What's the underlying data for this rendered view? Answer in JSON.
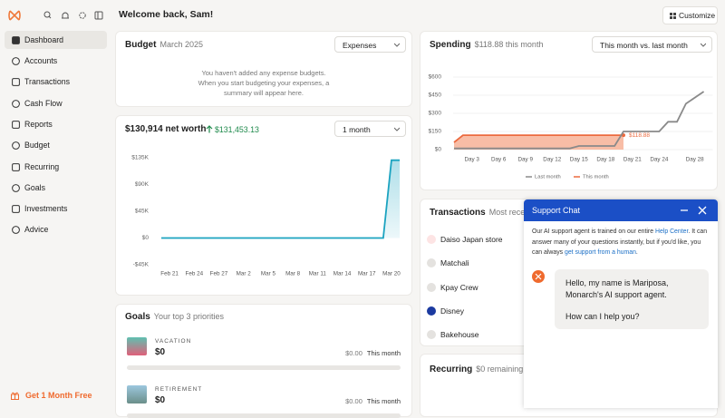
{
  "sidebar": {
    "nav": [
      "Dashboard",
      "Accounts",
      "Transactions",
      "Cash Flow",
      "Reports",
      "Budget",
      "Recurring",
      "Goals",
      "Investments",
      "Advice"
    ],
    "promo": "Get 1 Month Free"
  },
  "header": {
    "title": "Welcome back, Sam!",
    "customize": "Customize"
  },
  "budget": {
    "title": "Budget",
    "period": "March 2025",
    "dropdown": "Expenses",
    "empty_lines": [
      "You haven't added any expense budgets.",
      "When you start budgeting your expenses, a",
      "summary will appear here."
    ]
  },
  "net_worth": {
    "title": "$130,914 net worth",
    "change": "$131,453.13",
    "dropdown": "1 month",
    "chart": {
      "type": "line",
      "color": "#1ba3c0",
      "grid": false,
      "categories": [
        null,
        "Feb 21",
        null,
        null,
        "Feb 24",
        null,
        null,
        "Feb 27",
        null,
        null,
        "Mar 2",
        null,
        null,
        "Mar 5",
        null,
        null,
        "Mar 8",
        null,
        null,
        "Mar 11",
        null,
        null,
        "Mar 14",
        null,
        null,
        "Mar 17",
        null,
        null,
        "Mar 20",
        null
      ],
      "values": [
        0,
        0,
        0,
        0,
        0,
        0,
        0,
        0,
        0,
        0,
        0,
        0,
        0,
        0,
        0,
        0,
        0,
        0,
        0,
        0,
        0,
        0,
        0,
        0,
        0,
        0,
        0,
        0,
        130914,
        130914
      ],
      "ylim": [
        -45000,
        135000
      ],
      "yticks": [
        {
          "value": -45000,
          "label": "-$45K"
        },
        {
          "value": 0,
          "label": "$0"
        },
        {
          "value": 45000,
          "label": "$45K"
        },
        {
          "value": 90000,
          "label": "$90K"
        },
        {
          "value": 135000,
          "label": "$135K"
        }
      ]
    }
  },
  "goals": {
    "title": "Goals",
    "subtitle": "Your top 3 priorities",
    "items": [
      {
        "category": "VACATION",
        "amount": "$0",
        "contribution": "$0.00",
        "period": "This month"
      },
      {
        "category": "RETIREMENT",
        "amount": "$0",
        "contribution": "$0.00",
        "period": "This month"
      }
    ]
  },
  "spending": {
    "title": "Spending",
    "subtitle": "$118.88 this month",
    "dropdown": "This month vs. last month",
    "chart": {
      "type": "line",
      "grid": true,
      "xlim": [
        1,
        30
      ],
      "xticks": [
        {
          "value": 3,
          "label": "Day 3"
        },
        {
          "value": 6,
          "label": "Day 6"
        },
        {
          "value": 9,
          "label": "Day 9"
        },
        {
          "value": 12,
          "label": "Day 12"
        },
        {
          "value": 15,
          "label": "Day 15"
        },
        {
          "value": 18,
          "label": "Day 18"
        },
        {
          "value": 21,
          "label": "Day 21"
        },
        {
          "value": 24,
          "label": "Day 24"
        },
        {
          "value": 28,
          "label": "Day 28"
        }
      ],
      "ylim": [
        0,
        600
      ],
      "yticks": [
        {
          "value": 0,
          "label": "$0"
        },
        {
          "value": 150,
          "label": "$150"
        },
        {
          "value": 300,
          "label": "$300"
        },
        {
          "value": 450,
          "label": "$450"
        },
        {
          "value": 600,
          "label": "$600"
        }
      ],
      "series": [
        {
          "name": "Last month",
          "color": "#8a8a8a",
          "x": [
            1,
            14,
            15,
            19,
            20,
            24,
            25,
            26,
            27,
            29
          ],
          "values": [
            10,
            10,
            30,
            30,
            150,
            150,
            230,
            230,
            380,
            480
          ]
        },
        {
          "name": "This month",
          "color": "#ec6a3f",
          "x": [
            1,
            2,
            20
          ],
          "values": [
            60,
            118.88,
            118.88
          ],
          "value_labels": [
            null,
            null,
            "$118.88"
          ]
        }
      ]
    }
  },
  "transactions": {
    "title": "Transactions",
    "subtitle": "Most recent",
    "items": [
      "Daiso Japan store",
      "Matchali",
      "Kpay Crew",
      "Disney",
      "Bakehouse"
    ]
  },
  "recurring": {
    "title": "Recurring",
    "subtitle": "$0 remaining"
  },
  "chat": {
    "title": "Support Chat",
    "intro_1": "Our AI support agent is trained on our entire ",
    "link_1": "Help Center",
    "intro_2": ". It can answer many of your questions instantly, but if you'd like, you can always ",
    "link_2": "get support from a human",
    "intro_3": ".",
    "message": "Hello, my name is Mariposa, Monarch's AI support agent.",
    "question": "How can I help you?"
  }
}
